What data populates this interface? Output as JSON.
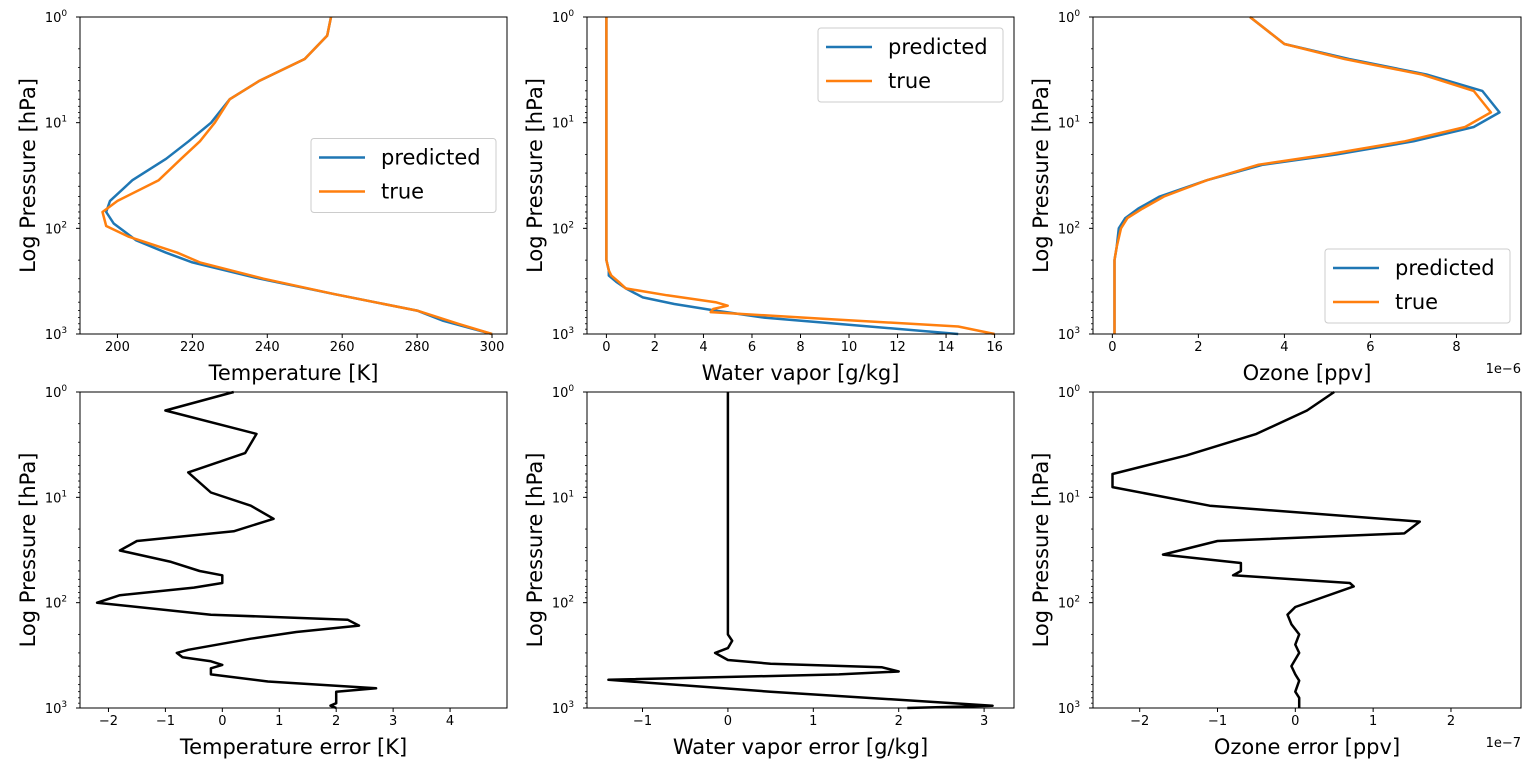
{
  "style": {
    "predicted_color": "#1f77b4",
    "true_color": "#ff7f0e",
    "error_color": "#000000"
  },
  "chart_data": [
    {
      "type": "line",
      "xlabel": "Temperature [K]",
      "ylabel": "Log Pressure [hPa]",
      "xlim": [
        190,
        304
      ],
      "ylim": [
        1000,
        1
      ],
      "yscale": "log",
      "xticks": [
        200,
        220,
        240,
        260,
        280,
        300
      ],
      "xtick_labels": [
        "200",
        "220",
        "240",
        "260",
        "280",
        "300"
      ],
      "xscale_note": "",
      "legend_position": "center-right",
      "series": [
        {
          "name": "predicted",
          "x": [
            257,
            256,
            250,
            238,
            230,
            225,
            219,
            213,
            204,
            198,
            197,
            199,
            205,
            213,
            220,
            238,
            258,
            280,
            287,
            300
          ],
          "y": [
            1,
            1.5,
            2.5,
            4,
            6,
            10,
            15,
            22,
            35,
            55,
            70,
            90,
            130,
            170,
            210,
            300,
            420,
            600,
            750,
            1000
          ]
        },
        {
          "name": "true",
          "x": [
            257,
            256,
            250,
            238,
            230,
            226,
            222,
            217,
            211,
            200,
            196,
            197,
            203,
            216,
            222,
            239,
            258,
            280,
            291,
            300
          ],
          "y": [
            1,
            1.5,
            2.5,
            4,
            6,
            10,
            15,
            22,
            35,
            55,
            70,
            95,
            120,
            170,
            210,
            300,
            420,
            600,
            800,
            1000
          ]
        }
      ]
    },
    {
      "type": "line",
      "xlabel": "Water vapor [g/kg]",
      "ylabel": "Log Pressure [hPa]",
      "xlim": [
        -0.8,
        16.8
      ],
      "ylim": [
        1000,
        1
      ],
      "yscale": "log",
      "xticks": [
        0,
        2,
        4,
        6,
        8,
        10,
        12,
        14,
        16
      ],
      "xtick_labels": [
        "0",
        "2",
        "4",
        "6",
        "8",
        "10",
        "12",
        "14",
        "16"
      ],
      "xscale_note": "",
      "legend_position": "top-right",
      "series": [
        {
          "name": "predicted",
          "x": [
            0.0,
            0.0,
            0.0,
            0.0,
            0.0,
            0.0,
            0.1,
            0.1,
            0.4,
            0.8,
            1.5,
            2.8,
            4.5,
            6.5,
            9.5,
            14.5
          ],
          "y": [
            1,
            10,
            50,
            100,
            150,
            200,
            250,
            280,
            320,
            370,
            450,
            520,
            600,
            700,
            800,
            1000
          ]
        },
        {
          "name": "true",
          "x": [
            0.0,
            0.0,
            0.0,
            0.0,
            0.0,
            0.0,
            0.1,
            0.2,
            0.5,
            0.8,
            2.5,
            4.5,
            5.0,
            4.4,
            4.3,
            9.0,
            14.5,
            16.0
          ],
          "y": [
            1,
            10,
            50,
            100,
            150,
            200,
            250,
            280,
            320,
            370,
            430,
            500,
            540,
            580,
            620,
            720,
            850,
            1000
          ]
        }
      ]
    },
    {
      "type": "line",
      "xlabel": "Ozone [ppv]",
      "ylabel": "Log Pressure [hPa]",
      "xlim": [
        -0.45,
        9.5
      ],
      "ylim": [
        1000,
        1
      ],
      "yscale": "log",
      "xticks": [
        0,
        2,
        4,
        6,
        8
      ],
      "xtick_labels": [
        "0",
        "2",
        "4",
        "6",
        "8"
      ],
      "xscale_note": "1e−6",
      "legend_position": "lower-right",
      "series": [
        {
          "name": "predicted",
          "x": [
            3.2,
            4.0,
            5.5,
            7.3,
            8.6,
            9.0,
            8.4,
            7.0,
            5.2,
            3.5,
            2.2,
            1.1,
            0.6,
            0.3,
            0.15,
            0.1,
            0.05,
            0.05,
            0.05,
            0.05
          ],
          "y": [
            1,
            1.8,
            2.5,
            3.5,
            5,
            8,
            11,
            15,
            20,
            25,
            35,
            50,
            65,
            80,
            100,
            150,
            200,
            300,
            500,
            1000
          ]
        },
        {
          "name": "true",
          "x": [
            3.2,
            4.0,
            5.4,
            7.2,
            8.4,
            8.8,
            8.2,
            6.8,
            5.0,
            3.4,
            2.2,
            1.2,
            0.7,
            0.35,
            0.2,
            0.1,
            0.05,
            0.05,
            0.05,
            0.05
          ],
          "y": [
            1,
            1.8,
            2.5,
            3.5,
            5,
            8,
            11,
            15,
            20,
            25,
            35,
            50,
            65,
            80,
            100,
            150,
            200,
            300,
            500,
            1000
          ]
        }
      ]
    },
    {
      "type": "line",
      "xlabel": "Temperature error [K]",
      "ylabel": "Log Pressure [hPa]",
      "xlim": [
        -2.5,
        5.0
      ],
      "ylim": [
        1000,
        1
      ],
      "yscale": "log",
      "xticks": [
        -2,
        -1,
        0,
        1,
        2,
        3,
        4
      ],
      "xtick_labels": [
        "−2",
        "−1",
        "0",
        "1",
        "2",
        "3",
        "4"
      ],
      "xscale_note": "",
      "legend_position": "",
      "series": [
        {
          "name": "",
          "x": [
            0.2,
            -1.0,
            0.6,
            0.4,
            -0.6,
            -0.2,
            0.5,
            0.9,
            0.2,
            -1.5,
            -1.8,
            -0.9,
            -0.4,
            0.0,
            0.0,
            -0.5,
            -1.8,
            -2.2,
            -0.2,
            2.2,
            2.4,
            1.3,
            0.5,
            -0.6,
            -0.8,
            -0.7,
            -0.2,
            0.0,
            -0.2,
            -0.2,
            0.8,
            2.7,
            2.0,
            2.0,
            1.9,
            2.0
          ],
          "y": [
            1,
            1.5,
            2.5,
            3.8,
            5.8,
            9,
            12,
            16,
            21,
            26,
            32,
            41,
            50,
            55,
            65,
            72,
            85,
            100,
            130,
            145,
            165,
            190,
            220,
            280,
            300,
            330,
            360,
            390,
            420,
            480,
            560,
            650,
            700,
            900,
            950,
            1000
          ]
        }
      ]
    },
    {
      "type": "line",
      "xlabel": "Water vapor error [g/kg]",
      "ylabel": "Log Pressure [hPa]",
      "xlim": [
        -1.65,
        3.35
      ],
      "ylim": [
        1000,
        1
      ],
      "yscale": "log",
      "xticks": [
        -1,
        0,
        1,
        2,
        3
      ],
      "xtick_labels": [
        "−1",
        "0",
        "1",
        "2",
        "3"
      ],
      "xscale_note": "",
      "legend_position": "",
      "series": [
        {
          "name": "",
          "x": [
            0.0,
            0.0,
            0.0,
            0.0,
            0.0,
            0.0,
            0.05,
            0.0,
            -0.15,
            0.0,
            0.5,
            1.8,
            2.0,
            1.3,
            -1.4,
            0.5,
            3.1,
            2.1
          ],
          "y": [
            1,
            10,
            50,
            100,
            150,
            200,
            230,
            270,
            300,
            350,
            380,
            410,
            450,
            480,
            540,
            700,
            950,
            1000
          ]
        }
      ]
    },
    {
      "type": "line",
      "xlabel": "Ozone error [ppv]",
      "ylabel": "Log Pressure [hPa]",
      "xlim": [
        -2.6,
        2.9
      ],
      "ylim": [
        1000,
        1
      ],
      "yscale": "log",
      "xticks": [
        -2,
        -1,
        0,
        1,
        2
      ],
      "xtick_labels": [
        "−2",
        "−1",
        "0",
        "1",
        "2"
      ],
      "xscale_note": "1e−7",
      "legend_position": "",
      "series": [
        {
          "name": "",
          "x": [
            0.5,
            0.15,
            -0.5,
            -1.4,
            -2.35,
            -2.35,
            -1.1,
            1.6,
            1.4,
            -1.0,
            -1.7,
            -0.7,
            -0.7,
            -0.8,
            0.7,
            0.75,
            0.0,
            -0.1,
            -0.05,
            0.05,
            0.0,
            0.05,
            -0.05,
            0.0,
            0.05,
            0.0,
            0.05,
            0.05
          ],
          "y": [
            1,
            1.5,
            2.5,
            4,
            6,
            8,
            12,
            17,
            22,
            26,
            35,
            42,
            50,
            55,
            65,
            70,
            110,
            130,
            160,
            200,
            250,
            300,
            400,
            480,
            550,
            700,
            800,
            1000
          ]
        }
      ]
    }
  ]
}
